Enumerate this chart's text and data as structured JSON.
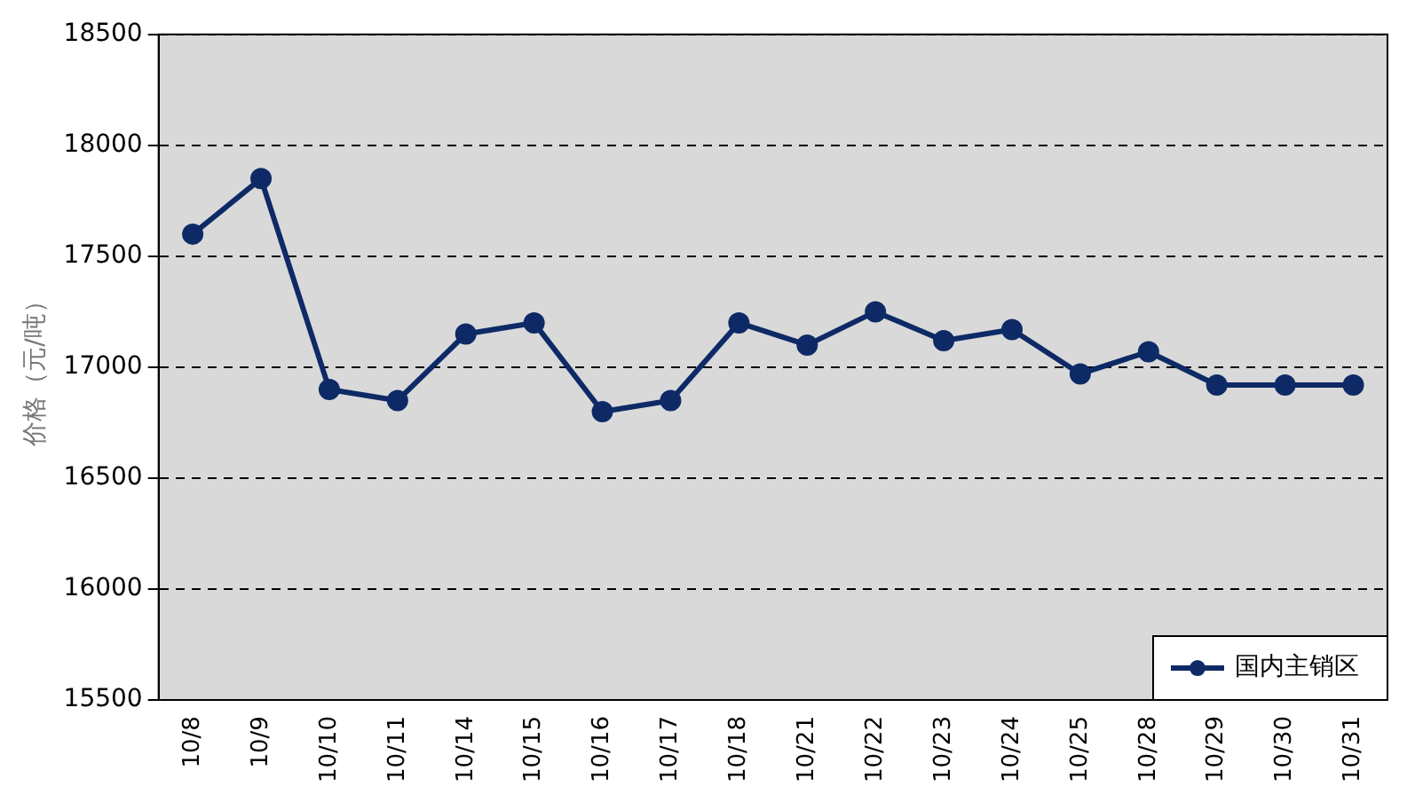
{
  "chart_data": {
    "type": "line",
    "ylabel": "价格（元/吨）",
    "categories": [
      "10/8",
      "10/9",
      "10/10",
      "10/11",
      "10/14",
      "10/15",
      "10/16",
      "10/17",
      "10/18",
      "10/21",
      "10/22",
      "10/23",
      "10/24",
      "10/25",
      "10/28",
      "10/29",
      "10/30",
      "10/31"
    ],
    "series": [
      {
        "name": "国内主销区",
        "color": "#0e2a66",
        "values": [
          17600,
          17850,
          16900,
          16850,
          17150,
          17200,
          16800,
          16850,
          17200,
          17100,
          17250,
          17120,
          17170,
          16970,
          17070,
          16920,
          16920,
          16920
        ]
      }
    ],
    "ylim": [
      15500,
      18500
    ],
    "yticks": [
      15500,
      16000,
      16500,
      17000,
      17500,
      18000,
      18500
    ],
    "grid": "y",
    "legend": "bottom right",
    "marker": "circle",
    "line_style": "solid"
  }
}
